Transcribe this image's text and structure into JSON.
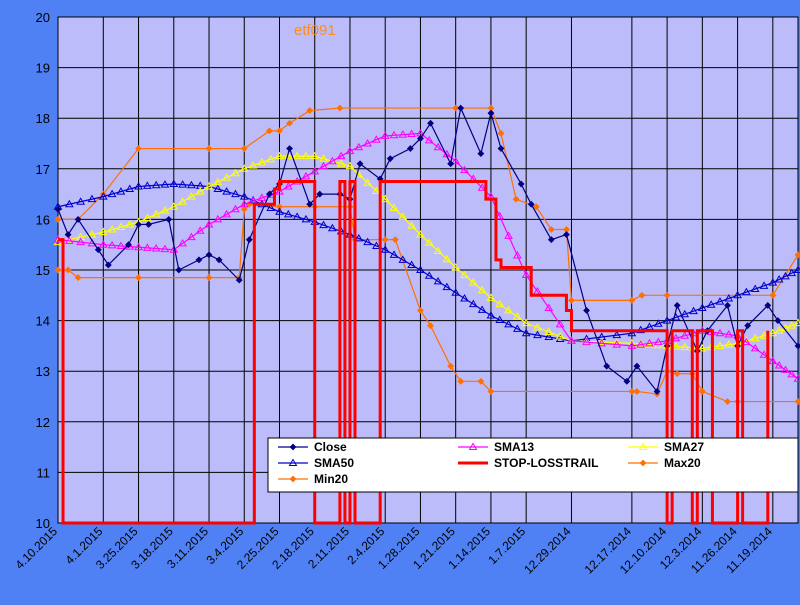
{
  "chart_data": {
    "type": "line",
    "title": "etf091",
    "ylim": [
      10,
      20
    ],
    "y_ticks": [
      "10",
      "11",
      "12",
      "13",
      "14",
      "15",
      "16",
      "17",
      "18",
      "19",
      "20"
    ],
    "x_tick_labels": [
      "4.10.2015",
      "4.1.2015",
      "3.25.2015",
      "3.18.2015",
      "3.11.2015",
      "3.4.2015",
      "2.25.2015",
      "2.18.2015",
      "2.11.2015",
      "2.4.2015",
      "1.28.2015",
      "1.21.2015",
      "1.14.2015",
      "1.7.2015",
      "12.29.2014",
      "12.17.2014",
      "12.10.2014",
      "12.3.2014",
      "11.26.2014",
      "11.19.2014"
    ],
    "x_range": [
      "4.10.2015",
      "11.14.2014"
    ],
    "grid": true,
    "legend_position": "bottom-right",
    "series": [
      {
        "name": "Close",
        "color": "#000080",
        "marker": "diamond",
        "x": [
          "4.10.2015",
          "4.8.2015",
          "4.6.2015",
          "4.2.2015",
          "3.31.2015",
          "3.27.2015",
          "3.25.2015",
          "3.23.2015",
          "3.19.2015",
          "3.17.2015",
          "3.13.2015",
          "3.11.2015",
          "3.9.2015",
          "3.5.2015",
          "3.3.2015",
          "2.27.2015",
          "2.25.2015",
          "2.23.2015",
          "2.19.2015",
          "2.17.2015",
          "2.13.2015",
          "2.11.2015",
          "2.9.2015",
          "2.5.2015",
          "2.3.2015",
          "1.30.2015",
          "1.28.2015",
          "1.26.2015",
          "1.22.2015",
          "1.20.2015",
          "1.16.2015",
          "1.14.2015",
          "1.12.2015",
          "1.8.2015",
          "1.6.2015",
          "1.2.2015",
          "12.30.2014",
          "12.26.2014",
          "12.22.2014",
          "12.18.2014",
          "12.16.2014",
          "12.12.2014",
          "12.10.2014",
          "12.8.2014",
          "12.4.2014",
          "12.2.2014",
          "11.28.2014",
          "11.26.2014",
          "11.24.2014",
          "11.20.2014",
          "11.18.2014",
          "11.14.2014"
        ],
        "values": [
          16.2,
          15.7,
          16.0,
          15.4,
          15.1,
          15.5,
          15.9,
          15.9,
          16.0,
          15.0,
          15.2,
          15.3,
          15.2,
          14.8,
          15.6,
          16.5,
          16.7,
          17.4,
          16.3,
          16.5,
          16.5,
          16.4,
          17.1,
          16.8,
          17.2,
          17.4,
          17.6,
          17.9,
          17.1,
          18.2,
          17.3,
          18.1,
          17.4,
          16.7,
          16.3,
          15.6,
          15.7,
          14.2,
          13.1,
          12.8,
          13.1,
          12.6,
          13.5,
          14.3,
          13.4,
          13.8,
          14.3,
          13.5,
          13.9,
          14.3,
          14.0,
          13.5
        ]
      },
      {
        "name": "SMA13",
        "color": "#ff00ff",
        "marker": "triangle",
        "x": [
          "4.10.2015",
          "4.1.2015",
          "3.25.2015",
          "3.18.2015",
          "3.11.2015",
          "3.4.2015",
          "2.25.2015",
          "2.18.2015",
          "2.11.2015",
          "2.4.2015",
          "1.28.2015",
          "1.21.2015",
          "1.14.2015",
          "1.7.2015",
          "12.29.2014",
          "12.17.2014",
          "12.10.2014",
          "12.3.2014",
          "11.26.2014",
          "11.19.2014",
          "11.14.2014"
        ],
        "values": [
          15.6,
          15.5,
          15.45,
          15.4,
          15.9,
          16.3,
          16.55,
          16.95,
          17.35,
          17.65,
          17.7,
          17.15,
          16.45,
          14.9,
          13.6,
          13.5,
          13.6,
          13.8,
          13.7,
          13.2,
          12.85
        ]
      },
      {
        "name": "SMA27",
        "color": "#ffff00",
        "marker": "triangle",
        "x": [
          "4.10.2015",
          "4.1.2015",
          "3.25.2015",
          "3.18.2015",
          "3.11.2015",
          "3.4.2015",
          "2.25.2015",
          "2.18.2015",
          "2.11.2015",
          "2.4.2015",
          "1.28.2015",
          "1.21.2015",
          "1.14.2015",
          "1.7.2015",
          "12.29.2014",
          "12.17.2014",
          "12.10.2014",
          "12.3.2014",
          "11.26.2014",
          "11.19.2014",
          "11.14.2014"
        ],
        "values": [
          15.55,
          15.75,
          15.95,
          16.25,
          16.65,
          17.0,
          17.25,
          17.25,
          17.05,
          16.4,
          15.7,
          15.05,
          14.45,
          13.95,
          13.6,
          13.55,
          13.5,
          13.45,
          13.55,
          13.75,
          13.95
        ]
      },
      {
        "name": "SMA50",
        "color": "#0000cc",
        "marker": "triangle",
        "x": [
          "4.10.2015",
          "4.1.2015",
          "3.25.2015",
          "3.18.2015",
          "3.11.2015",
          "3.4.2015",
          "2.25.2015",
          "2.18.2015",
          "2.11.2015",
          "2.4.2015",
          "1.28.2015",
          "1.21.2015",
          "1.14.2015",
          "1.7.2015",
          "12.29.2014",
          "12.17.2014",
          "12.10.2014",
          "12.3.2014",
          "11.26.2014",
          "11.19.2014",
          "11.14.2014"
        ],
        "values": [
          16.25,
          16.45,
          16.65,
          16.7,
          16.65,
          16.45,
          16.15,
          15.95,
          15.7,
          15.4,
          15.0,
          14.55,
          14.1,
          13.75,
          13.6,
          13.75,
          14.0,
          14.25,
          14.5,
          14.75,
          15.0
        ]
      },
      {
        "name": "STOP-LOSSTRAIL",
        "color": "#ff0000",
        "marker": "none",
        "x": [
          "4.10.2015",
          "4.9.2015",
          "3.3.2015",
          "3.2.2015",
          "2.27.2015",
          "2.26.2015",
          "2.25.2015",
          "2.20.2015",
          "2.18.2015",
          "2.13.2015",
          "2.12.2015",
          "2.11.2015",
          "2.10.2015",
          "2.5.2015",
          "1.28.2015",
          "1.21.2015",
          "1.16.2015",
          "1.15.2015",
          "1.13.2015",
          "1.12.2015",
          "1.8.2015",
          "1.6.2015",
          "1.2.2015",
          "12.30.2014",
          "12.29.2014",
          "12.10.2014",
          "12.9.2014",
          "12.5.2014",
          "12.4.2014",
          "12.2.2014",
          "12.1.2014",
          "11.26.2014",
          "11.25.2014",
          "11.20.2014"
        ],
        "values": [
          15.6,
          10,
          10,
          16.3,
          16.3,
          16.6,
          16.75,
          16.75,
          10,
          16.75,
          10,
          16.75,
          10,
          16.75,
          16.75,
          16.75,
          16.75,
          16.4,
          15.2,
          15.05,
          15.05,
          14.5,
          14.5,
          14.2,
          13.8,
          10,
          13.8,
          10,
          13.8,
          13.8,
          10,
          13.8,
          10,
          13.8
        ]
      },
      {
        "name": "Max20",
        "color": "#ff7000",
        "marker": "diamond",
        "x": [
          "4.10.2015",
          "4.6.2015",
          "4.1.2015",
          "3.25.2015",
          "3.11.2015",
          "3.4.2015",
          "2.27.2015",
          "2.25.2015",
          "2.23.2015",
          "2.19.2015",
          "2.13.2015",
          "1.21.2015",
          "1.14.2015",
          "1.12.2015",
          "1.9.2015",
          "1.5.2015",
          "1.2.2015",
          "12.30.2014",
          "12.29.2014",
          "12.17.2014",
          "12.15.2014",
          "12.10.2014",
          "11.19.2014",
          "11.14.2014"
        ],
        "values": [
          16.0,
          16.0,
          16.5,
          17.4,
          17.4,
          17.4,
          17.75,
          17.75,
          17.9,
          18.15,
          18.2,
          18.2,
          18.2,
          17.7,
          16.4,
          16.25,
          15.8,
          15.8,
          14.4,
          14.4,
          14.5,
          14.5,
          14.5,
          15.3
        ]
      },
      {
        "name": "Min20",
        "color": "#ff7000",
        "marker": "diamond",
        "x": [
          "4.10.2015",
          "4.8.2015",
          "4.6.2015",
          "3.25.2015",
          "3.11.2015",
          "3.5.2015",
          "3.4.2015",
          "3.3.2015",
          "2.25.2015",
          "2.18.2015",
          "2.11.2015",
          "2.10.2015",
          "2.4.2015",
          "2.2.2015",
          "1.28.2015",
          "1.26.2015",
          "1.22.2015",
          "1.20.2015",
          "1.16.2015",
          "1.14.2015",
          "12.17.2014",
          "12.16.2014",
          "12.12.2014",
          "12.10.2014",
          "12.8.2014",
          "12.5.2014",
          "12.3.2014",
          "11.28.2014",
          "11.26.2014",
          "11.14.2014"
        ],
        "values": [
          15.0,
          15.0,
          14.85,
          14.85,
          14.85,
          14.85,
          16.2,
          16.3,
          16.25,
          16.25,
          16.25,
          15.6,
          15.6,
          15.6,
          14.2,
          13.9,
          13.1,
          12.8,
          12.8,
          12.6,
          12.6,
          12.6,
          12.55,
          13.0,
          12.95,
          12.95,
          12.6,
          12.4,
          12.4,
          12.4
        ]
      }
    ]
  }
}
